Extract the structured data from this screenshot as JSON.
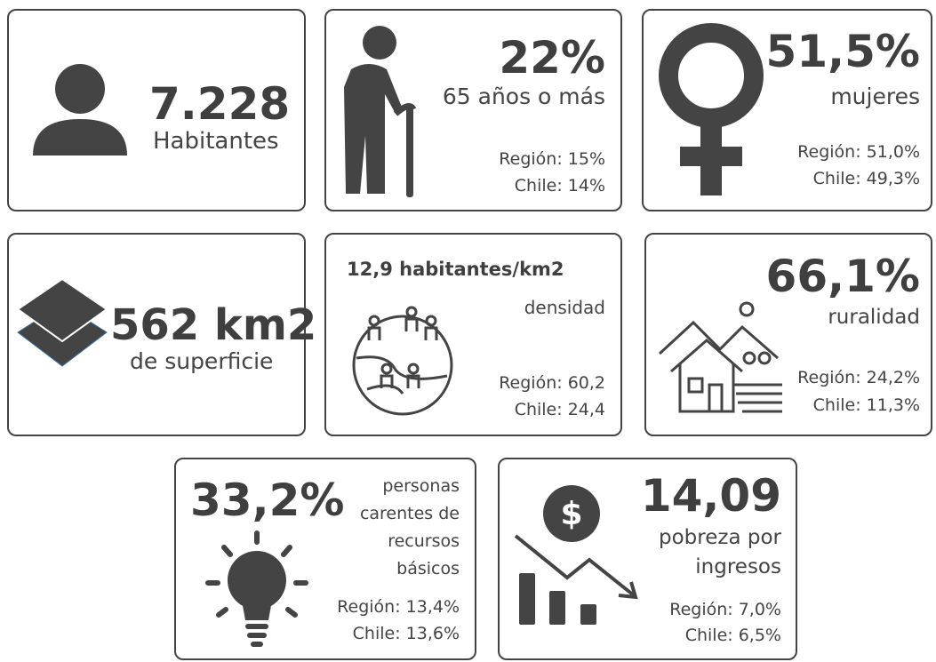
{
  "cards": [
    {
      "value": "7.228",
      "label": [
        "Habitantes"
      ]
    },
    {
      "value": "22%",
      "label": [
        "65 años o más"
      ],
      "region": "Región: 15%",
      "chile": "Chile: 14%"
    },
    {
      "value": "51,5%",
      "label": [
        "mujeres"
      ],
      "region": "Región: 51,0%",
      "chile": "Chile: 49,3%"
    },
    {
      "value": "562 km2",
      "label": [
        "de superficie"
      ]
    },
    {
      "value": "12,9 habitantes/km2",
      "label": [
        "densidad"
      ],
      "region": "Región: 60,2",
      "chile": "Chile: 24,4"
    },
    {
      "value": "66,1%",
      "label": [
        "ruralidad"
      ],
      "region": "Región: 24,2%",
      "chile": "Chile: 11,3%"
    },
    {
      "value": "33,2%",
      "label": [
        "personas",
        "carentes de",
        "recursos",
        "básicos"
      ],
      "region": "Región: 13,4%",
      "chile": "Chile: 13,6%"
    },
    {
      "value": "14,09",
      "label": [
        "pobreza por",
        "ingresos"
      ],
      "region": "Región: 7,0%",
      "chile": "Chile: 6,5%"
    }
  ]
}
